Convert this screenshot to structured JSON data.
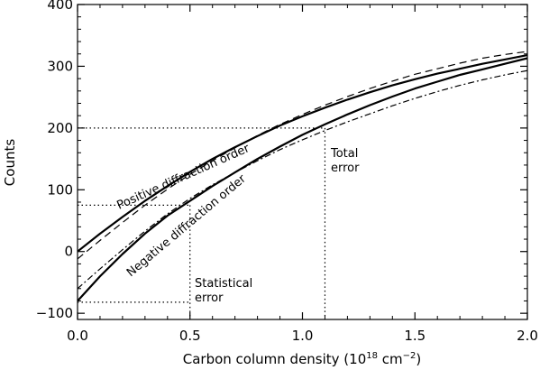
{
  "chart_data": {
    "type": "line",
    "xlabel_main": "Carbon column density (10",
    "xlabel_exp1": "18",
    "xlabel_mid": " cm",
    "xlabel_exp2": "−2",
    "xlabel_end": ")",
    "ylabel": "Counts",
    "xlim": [
      0.0,
      2.0
    ],
    "ylim": [
      -110,
      400
    ],
    "x_ticks": [
      0.0,
      0.5,
      1.0,
      1.5,
      2.0
    ],
    "x_tick_labels": [
      "0.0",
      "0.5",
      "1.0",
      "1.5",
      "2.0"
    ],
    "y_ticks": [
      -100,
      0,
      100,
      200,
      300,
      400
    ],
    "y_tick_labels": [
      "−100",
      "0",
      "100",
      "200",
      "300",
      "400"
    ],
    "series": [
      {
        "style": "solid",
        "x": [
          0.0,
          0.1,
          0.2,
          0.3,
          0.4,
          0.5,
          0.6,
          0.7,
          0.8,
          0.9,
          1.0,
          1.1,
          1.2,
          1.3,
          1.4,
          1.5,
          1.6,
          1.7,
          1.8,
          1.9,
          2.0
        ],
        "y": [
          0,
          29,
          56,
          82,
          106,
          129,
          150,
          169,
          187,
          204,
          219,
          233,
          246,
          258,
          269,
          279,
          288,
          296,
          304,
          311,
          318
        ]
      },
      {
        "style": "dashed",
        "x": [
          0.0,
          0.1,
          0.2,
          0.3,
          0.4,
          0.5,
          0.6,
          0.7,
          0.8,
          0.9,
          1.0,
          1.1,
          1.2,
          1.3,
          1.4,
          1.5,
          1.6,
          1.7,
          1.8,
          1.9,
          2.0
        ],
        "y": [
          -12,
          18,
          47,
          75,
          101,
          125,
          147,
          168,
          188,
          206,
          222,
          237,
          251,
          264,
          276,
          287,
          296,
          305,
          313,
          319,
          324
        ]
      },
      {
        "style": "solid",
        "x": [
          0.0,
          0.1,
          0.2,
          0.3,
          0.4,
          0.5,
          0.6,
          0.7,
          0.8,
          0.9,
          1.0,
          1.1,
          1.2,
          1.3,
          1.4,
          1.5,
          1.6,
          1.7,
          1.8,
          1.9,
          2.0
        ],
        "y": [
          -80,
          -40,
          -4,
          29,
          58,
          82,
          106,
          128,
          150,
          170,
          189,
          206,
          222,
          237,
          251,
          264,
          275,
          286,
          295,
          304,
          313
        ]
      },
      {
        "style": "dashdot",
        "x": [
          0.0,
          0.1,
          0.2,
          0.3,
          0.4,
          0.5,
          0.6,
          0.7,
          0.8,
          0.9,
          1.0,
          1.1,
          1.2,
          1.3,
          1.4,
          1.5,
          1.6,
          1.7,
          1.8,
          1.9,
          2.0
        ],
        "y": [
          -60,
          -28,
          3,
          33,
          61,
          86,
          108,
          128,
          147,
          165,
          181,
          196,
          210,
          223,
          236,
          248,
          259,
          269,
          278,
          286,
          293
        ]
      }
    ],
    "reference_lines": [
      {
        "style": "dotted",
        "x": [
          0.0,
          1.1
        ],
        "y": [
          200,
          200
        ]
      },
      {
        "style": "dotted",
        "x": [
          1.1,
          1.1
        ],
        "y": [
          200,
          -110
        ]
      },
      {
        "style": "dotted",
        "x": [
          0.0,
          0.5
        ],
        "y": [
          75,
          75
        ]
      },
      {
        "style": "dotted",
        "x": [
          0.5,
          0.5
        ],
        "y": [
          75,
          -110
        ]
      },
      {
        "style": "dotted",
        "x": [
          0.0,
          0.5
        ],
        "y": [
          -82,
          -82
        ]
      }
    ],
    "annotations": {
      "positive_order": "Positive diffraction order",
      "negative_order": "Negative diffraction order",
      "total_error_1": "Total",
      "total_error_2": "error",
      "statistical_error_1": "Statistical",
      "statistical_error_2": "error"
    }
  }
}
